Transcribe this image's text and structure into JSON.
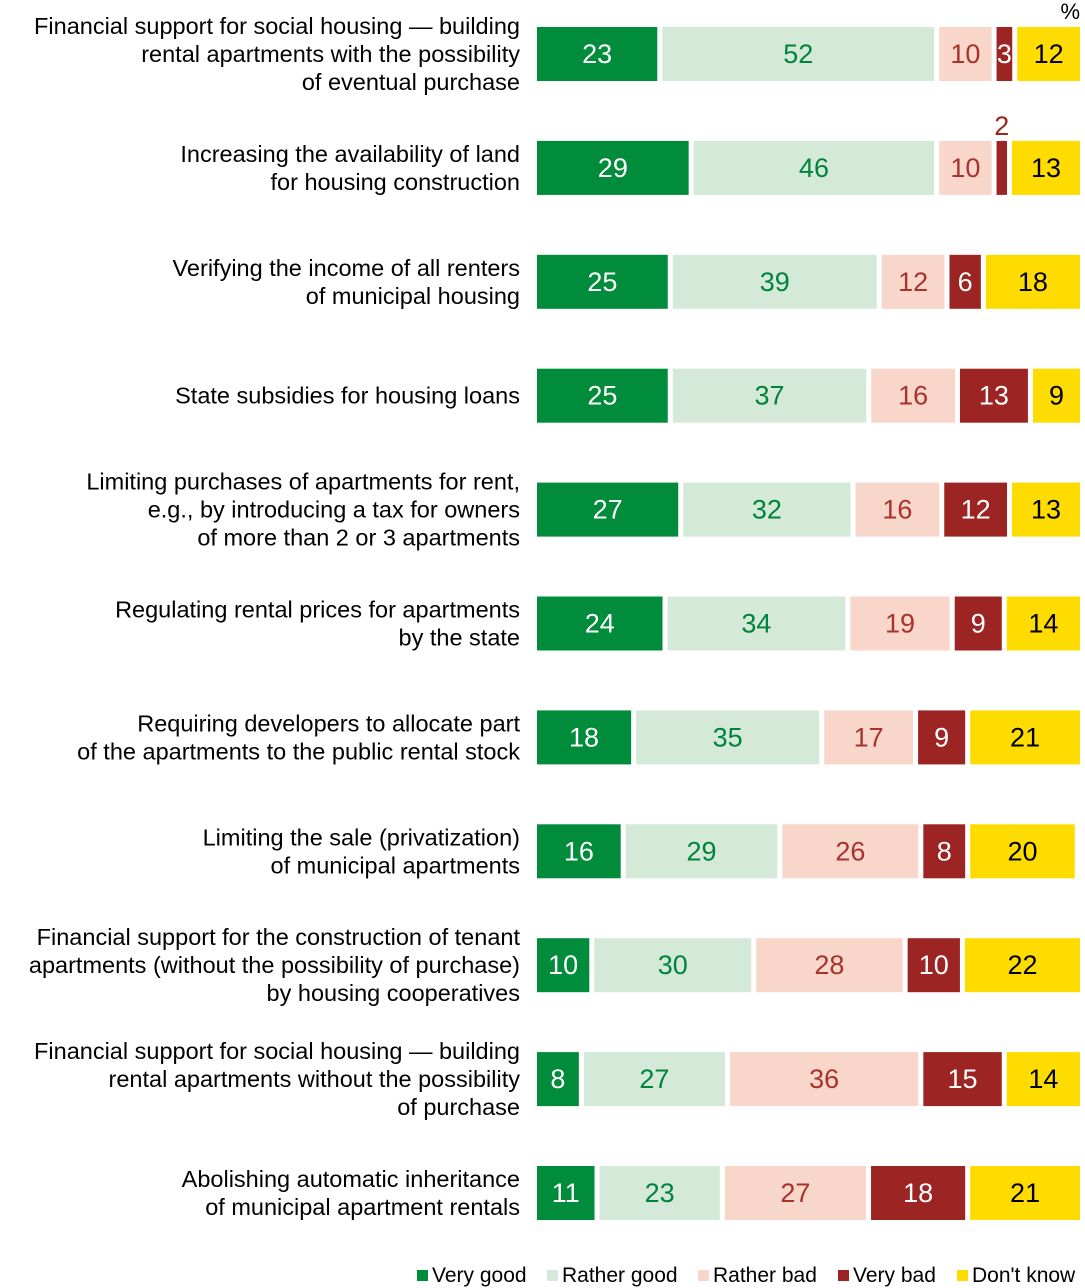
{
  "chart_data": {
    "type": "bar",
    "orientation": "horizontal",
    "stacked": true,
    "unit_label": "%",
    "categories": [
      [
        "Financial support for social housing — building",
        "rental apartments with the possibility",
        "of eventual purchase"
      ],
      [
        "Increasing the availability of land",
        "for housing construction"
      ],
      [
        "Verifying the income of all renters",
        "of municipal housing"
      ],
      [
        "State subsidies for housing loans"
      ],
      [
        "Limiting purchases of apartments for rent,",
        "e.g., by introducing a tax for owners",
        "of more than 2 or 3 apartments"
      ],
      [
        "Regulating rental prices for apartments",
        "by the state"
      ],
      [
        "Requiring developers to allocate part",
        "of the apartments to the public rental stock"
      ],
      [
        "Limiting the sale (privatization)",
        "of municipal apartments"
      ],
      [
        "Financial support for the construction of tenant",
        "apartments (without the possibility of purchase)",
        "by housing cooperatives"
      ],
      [
        "Financial support for social housing — building",
        "rental apartments without the possibility",
        "of purchase"
      ],
      [
        "Abolishing automatic inheritance",
        "of municipal apartment rentals"
      ]
    ],
    "series": [
      {
        "name": "Very good",
        "color": "#008c3a",
        "label_color": "#ffffff",
        "values": [
          23,
          29,
          25,
          25,
          27,
          24,
          18,
          16,
          10,
          8,
          11
        ]
      },
      {
        "name": "Rather good",
        "color": "#d4e9d8",
        "label_color": "#00843d",
        "values": [
          52,
          46,
          39,
          37,
          32,
          34,
          35,
          29,
          30,
          27,
          23
        ]
      },
      {
        "name": "Rather bad",
        "color": "#f9d6ca",
        "label_color": "#a8322d",
        "values": [
          10,
          10,
          12,
          16,
          16,
          19,
          17,
          26,
          28,
          36,
          27
        ]
      },
      {
        "name": "Very bad",
        "color": "#9c2523",
        "label_color": "#ffffff",
        "values": [
          3,
          2,
          6,
          13,
          12,
          9,
          9,
          8,
          10,
          15,
          18
        ]
      },
      {
        "name": "Don't know",
        "color": "#ffdc00",
        "label_color": "#000000",
        "values": [
          12,
          13,
          18,
          9,
          13,
          14,
          21,
          20,
          22,
          14,
          21
        ]
      }
    ],
    "xlim": [
      0,
      100
    ],
    "grid": false,
    "legend_position": "bottom-right"
  }
}
